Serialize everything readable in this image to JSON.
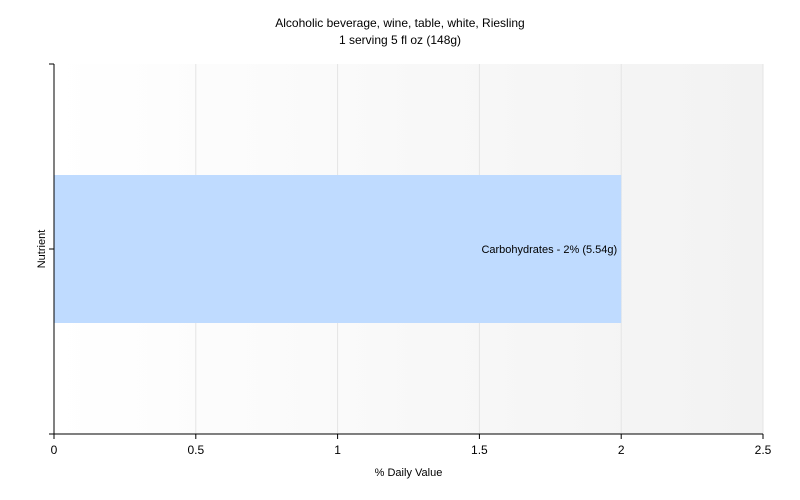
{
  "chart_data": {
    "type": "bar",
    "orientation": "horizontal",
    "title": "Alcoholic beverage, wine, table, white, Riesling",
    "subtitle": "1 serving 5 fl oz (148g)",
    "xlabel": "% Daily Value",
    "ylabel": "Nutrient",
    "xlim": [
      0,
      2.5
    ],
    "x_ticks": [
      "0",
      "0.5",
      "1",
      "1.5",
      "2",
      "2.5"
    ],
    "grid": true,
    "categories": [
      "Carbohydrates"
    ],
    "values": [
      2
    ],
    "data_labels": [
      "Carbohydrates - 2% (5.54g)"
    ],
    "colors": {
      "bar": "#bfdbff",
      "axis": "#000000",
      "grid": "#e4e4e4"
    }
  }
}
